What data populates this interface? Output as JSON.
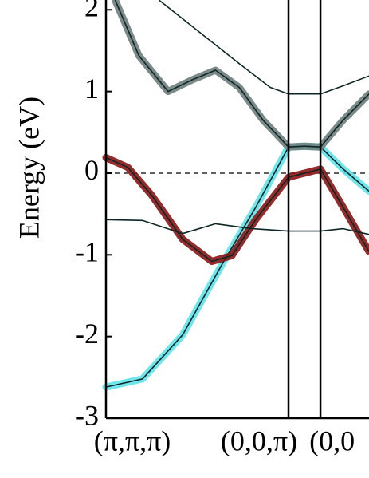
{
  "chart_data": {
    "type": "line",
    "y_label": "Energy (eV)",
    "xlim": [
      0,
      1.441
    ],
    "ylim": [
      -3,
      2.12
    ],
    "xticks": [
      {
        "value": 0,
        "label": "(π,π,π)"
      },
      {
        "value": 1,
        "label": "(0,0,π)"
      },
      {
        "value": 1.175,
        "label": "(0,0"
      }
    ],
    "yticks": [
      -3,
      -2,
      -1,
      0,
      1,
      2
    ],
    "reference_line": 0,
    "line_color": "#0d2626",
    "series": [
      {
        "color": "#5fe3ea",
        "x": [
          0,
          0.2,
          0.42,
          0.64,
          0.82,
          1,
          1.0875,
          1.175,
          1.3,
          1.441
        ],
        "values": [
          -2.62,
          -2.52,
          -1.98,
          -1.1,
          -0.42,
          0.32,
          0.33,
          0.32,
          0.05,
          -0.22
        ]
      },
      {
        "color": "#8a1414",
        "x": [
          0,
          0.12,
          0.25,
          0.42,
          0.58,
          0.69,
          0.82,
          1,
          1.0875,
          1.175,
          1.3,
          1.441
        ],
        "values": [
          0.19,
          0.07,
          -0.27,
          -0.81,
          -1.08,
          -1.01,
          -0.57,
          -0.05,
          0,
          0.05,
          -0.42,
          -0.96
        ]
      },
      {
        "color": null,
        "x": [
          0,
          0.2,
          0.42,
          0.6,
          0.8,
          1,
          1.175,
          1.3,
          1.441
        ],
        "values": [
          -0.57,
          -0.58,
          -0.74,
          -0.62,
          -0.68,
          -0.71,
          -0.71,
          -0.68,
          -0.75
        ]
      },
      {
        "color": "#6f7d7d",
        "x": [
          0.05,
          0.18,
          0.34,
          0.47,
          0.6,
          0.73,
          0.86,
          1,
          1.0875,
          1.175,
          1.3,
          1.441
        ],
        "values": [
          2.12,
          1.44,
          1.0,
          1.14,
          1.26,
          1.05,
          0.65,
          0.32,
          0.33,
          0.32,
          0.65,
          0.97
        ]
      },
      {
        "color": null,
        "x": [
          0.29,
          0.51,
          0.73,
          0.9,
          1,
          1.0875,
          1.175,
          1.3,
          1.441
        ],
        "values": [
          2.12,
          1.73,
          1.34,
          1.05,
          0.97,
          0.97,
          0.97,
          1.07,
          1.19
        ]
      }
    ]
  }
}
